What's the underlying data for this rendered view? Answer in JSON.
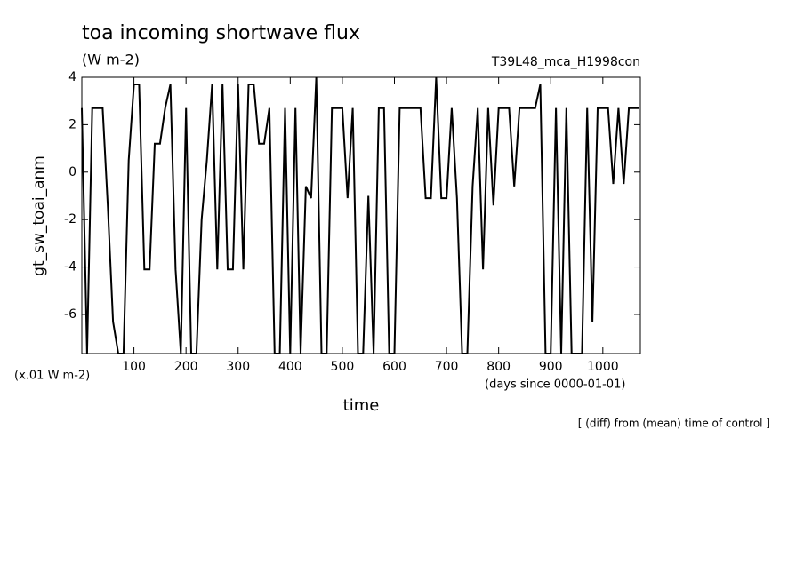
{
  "chart_data": {
    "type": "line",
    "title": "toa incoming shortwave flux",
    "units": "(W m-2)",
    "run_label": "T39L48_mca_H1998con",
    "y_label": "gt_sw_toai_anm",
    "y_scale_note": "(x.01 W m-2)",
    "x_label": "time",
    "x_units": "(days since 0000-01-01)",
    "footnote": "[ (diff) from (mean) time of control ]",
    "xlim": [
      0,
      1072
    ],
    "ylim": [
      -7.65,
      4
    ],
    "xticks": [
      100,
      200,
      300,
      400,
      500,
      600,
      700,
      800,
      900,
      1000
    ],
    "yticks": [
      -6,
      -4,
      -2,
      0,
      2,
      4
    ],
    "color": "#000000",
    "x": [
      0,
      10,
      20,
      30,
      40,
      50,
      60,
      70,
      80,
      90,
      100,
      110,
      120,
      130,
      140,
      150,
      160,
      170,
      180,
      190,
      200,
      210,
      220,
      230,
      240,
      250,
      260,
      270,
      280,
      290,
      300,
      310,
      320,
      330,
      340,
      350,
      360,
      370,
      380,
      390,
      400,
      410,
      420,
      430,
      440,
      450,
      460,
      470,
      480,
      490,
      500,
      510,
      520,
      530,
      540,
      550,
      560,
      570,
      580,
      590,
      600,
      610,
      620,
      630,
      640,
      650,
      660,
      670,
      680,
      690,
      700,
      710,
      720,
      730,
      740,
      750,
      760,
      770,
      780,
      790,
      800,
      810,
      820,
      830,
      840,
      850,
      860,
      870,
      880,
      890,
      900,
      910,
      920,
      930,
      940,
      950,
      960,
      970,
      980,
      990,
      1000,
      1010,
      1020,
      1030,
      1040,
      1050,
      1060,
      1070
    ],
    "values": [
      2.7,
      -7.65,
      2.7,
      2.7,
      2.7,
      -1.5,
      -6.3,
      -7.65,
      -7.65,
      0.5,
      3.7,
      3.7,
      -4.1,
      -4.1,
      1.2,
      1.2,
      2.7,
      3.7,
      -4.1,
      -7.65,
      2.7,
      -7.65,
      -7.65,
      -2,
      0.5,
      3.7,
      -4.1,
      3.7,
      -4.1,
      -4.1,
      3.7,
      -4.1,
      3.7,
      3.7,
      1.2,
      1.2,
      2.7,
      -7.65,
      -7.65,
      2.7,
      -7.65,
      2.7,
      -7.65,
      -0.6,
      -1.1,
      4,
      -7.65,
      -7.65,
      2.7,
      2.7,
      2.7,
      -1.1,
      2.7,
      -7.65,
      -7.65,
      -1,
      -7.65,
      2.7,
      2.7,
      -7.65,
      -7.65,
      2.7,
      2.7,
      2.7,
      2.7,
      2.7,
      -1.1,
      -1.1,
      4,
      -1.1,
      -1.1,
      2.7,
      -1.1,
      -7.65,
      -7.65,
      -0.6,
      2.7,
      -4.1,
      2.7,
      -1.4,
      2.7,
      2.7,
      2.7,
      -0.6,
      2.7,
      2.7,
      2.7,
      2.7,
      3.7,
      -7.65,
      -7.65,
      2.7,
      -7.65,
      2.7,
      -7.65,
      -7.65,
      -7.65,
      2.7,
      -6.3,
      2.7,
      2.7,
      2.7,
      -0.5,
      2.7,
      -0.5,
      2.7,
      2.7,
      2.7
    ]
  }
}
